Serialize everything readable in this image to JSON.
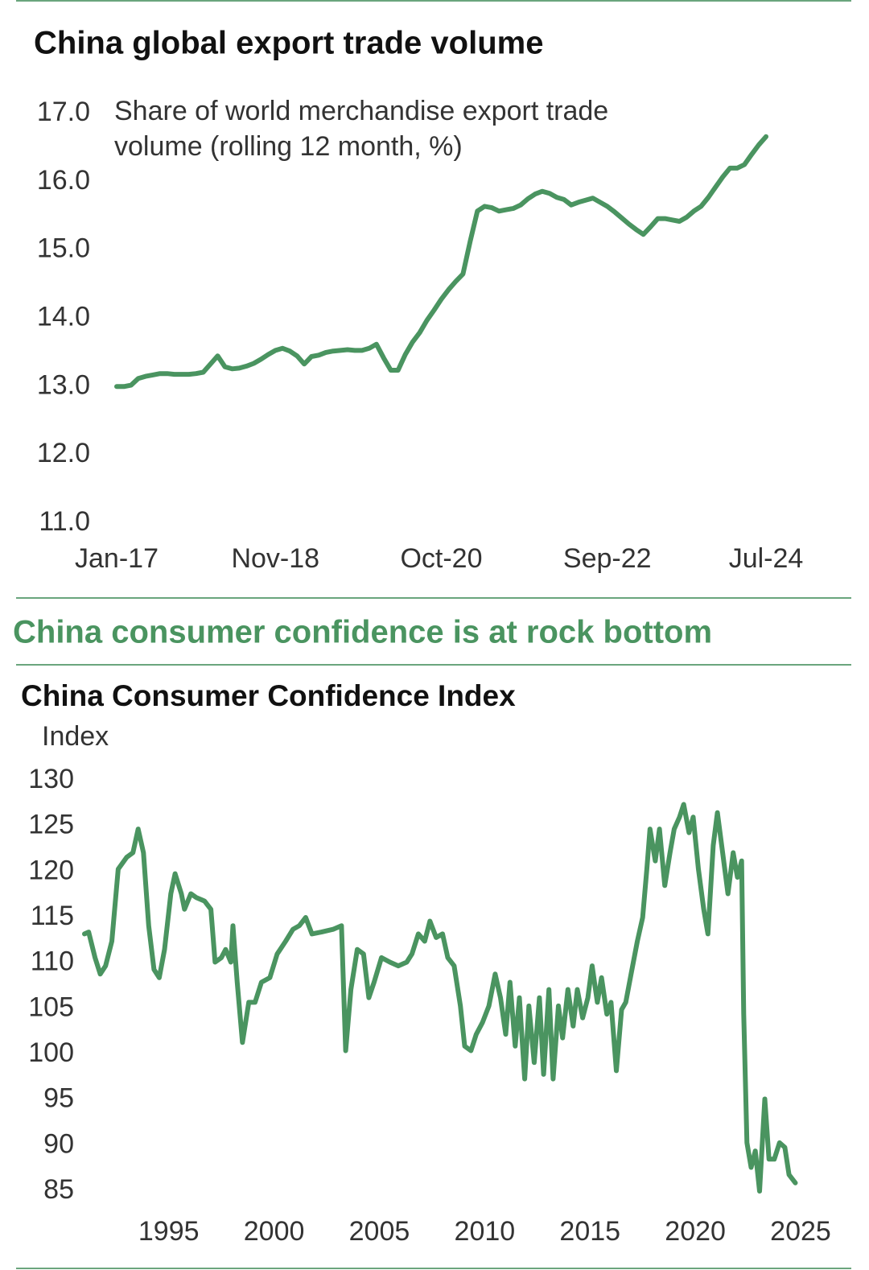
{
  "headline": "China consumer confidence is at rock bottom",
  "chart_data": [
    {
      "type": "line",
      "title": "China global export trade volume",
      "y_label_lines": [
        "Share of world merchandise export trade",
        "volume (rolling 12 month, %)"
      ],
      "categories": [
        "Jan-17",
        null,
        null,
        null,
        null,
        null,
        null,
        null,
        null,
        null,
        null,
        null,
        null,
        null,
        null,
        null,
        null,
        null,
        null,
        null,
        null,
        null,
        "Nov-18",
        null,
        null,
        null,
        null,
        null,
        null,
        null,
        null,
        null,
        null,
        null,
        null,
        null,
        null,
        null,
        null,
        null,
        null,
        null,
        null,
        null,
        null,
        "Oct-20",
        null,
        null,
        null,
        null,
        null,
        null,
        null,
        null,
        null,
        null,
        null,
        null,
        null,
        null,
        null,
        null,
        null,
        null,
        null,
        null,
        null,
        null,
        "Sep-22",
        null,
        null,
        null,
        null,
        null,
        null,
        null,
        null,
        null,
        null,
        null,
        null,
        null,
        null,
        null,
        null,
        null,
        null,
        null,
        null,
        null,
        "Jul-24"
      ],
      "values": [
        13.0,
        13.0,
        13.02,
        13.12,
        13.15,
        13.17,
        13.19,
        13.19,
        13.18,
        13.18,
        13.18,
        13.19,
        13.21,
        13.33,
        13.45,
        13.29,
        13.26,
        13.27,
        13.3,
        13.34,
        13.4,
        13.47,
        13.53,
        13.56,
        13.52,
        13.45,
        13.33,
        13.44,
        13.46,
        13.5,
        13.52,
        13.53,
        13.54,
        13.53,
        13.53,
        13.56,
        13.62,
        13.42,
        13.24,
        13.24,
        13.47,
        13.65,
        13.79,
        13.97,
        14.12,
        14.28,
        14.42,
        14.54,
        14.65,
        15.13,
        15.57,
        15.64,
        15.62,
        15.57,
        15.59,
        15.61,
        15.66,
        15.75,
        15.82,
        15.86,
        15.83,
        15.77,
        15.74,
        15.66,
        15.7,
        15.73,
        15.76,
        15.7,
        15.64,
        15.56,
        15.47,
        15.38,
        15.3,
        15.23,
        15.34,
        15.46,
        15.46,
        15.44,
        15.42,
        15.48,
        15.57,
        15.64,
        15.77,
        15.92,
        16.07,
        16.2,
        16.2,
        16.25,
        16.4,
        16.54,
        16.66
      ],
      "color": "#4a9460",
      "ylim": [
        11,
        17
      ],
      "yticks": [
        {
          "value": 11,
          "label": "11.0"
        },
        {
          "value": 12,
          "label": "12.0"
        },
        {
          "value": 13,
          "label": "13.0"
        },
        {
          "value": 14,
          "label": "14.0"
        },
        {
          "value": 15,
          "label": "15.0"
        },
        {
          "value": 16,
          "label": "16.0"
        },
        {
          "value": 17,
          "label": "17.0"
        }
      ],
      "grid": false
    },
    {
      "type": "line",
      "title": "China Consumer Confidence Index",
      "y_label": "Index",
      "x": [
        1991.0,
        1991.2,
        1991.5,
        1991.75,
        1992.0,
        1992.3,
        1992.6,
        1993.0,
        1993.3,
        1993.55,
        1993.8,
        1994.05,
        1994.3,
        1994.55,
        1994.8,
        1995.1,
        1995.3,
        1995.6,
        1995.75,
        1996.05,
        1996.3,
        1996.7,
        1997.0,
        1997.2,
        1997.5,
        1997.7,
        1997.95,
        1998.05,
        1998.25,
        1998.5,
        1998.8,
        1999.1,
        1999.4,
        1999.8,
        2000.15,
        2000.55,
        2000.9,
        2001.2,
        2001.5,
        2001.8,
        2002.25,
        2002.8,
        2003.2,
        2003.4,
        2003.65,
        2003.95,
        2004.25,
        2004.5,
        2004.75,
        2005.1,
        2005.5,
        2005.9,
        2006.3,
        2006.55,
        2006.85,
        2007.15,
        2007.4,
        2007.7,
        2008.0,
        2008.25,
        2008.55,
        2008.85,
        2009.05,
        2009.35,
        2009.6,
        2009.9,
        2010.2,
        2010.5,
        2010.75,
        2011.0,
        2011.2,
        2011.45,
        2011.65,
        2011.9,
        2012.1,
        2012.35,
        2012.6,
        2012.8,
        2013.05,
        2013.25,
        2013.5,
        2013.7,
        2013.95,
        2014.2,
        2014.4,
        2014.65,
        2014.9,
        2015.1,
        2015.35,
        2015.55,
        2015.8,
        2016.0,
        2016.25,
        2016.5,
        2016.7,
        2016.95,
        2017.25,
        2017.5,
        2017.7,
        2017.85,
        2018.1,
        2018.3,
        2018.55,
        2018.8,
        2019.0,
        2019.25,
        2019.45,
        2019.7,
        2019.9,
        2020.15,
        2020.4,
        2020.6,
        2020.85,
        2021.05,
        2021.3,
        2021.55,
        2021.8,
        2022.0,
        2022.2,
        2022.3,
        2022.45,
        2022.65,
        2022.85,
        2023.05,
        2023.3,
        2023.5,
        2023.75,
        2024.0,
        2024.25,
        2024.45,
        2024.75
      ],
      "values": [
        113.2,
        113.4,
        110.6,
        108.8,
        109.7,
        112.4,
        120.3,
        121.6,
        122.1,
        124.7,
        122.1,
        114.1,
        109.3,
        108.4,
        111.5,
        117.6,
        119.8,
        117.6,
        115.9,
        117.6,
        117.2,
        116.8,
        115.9,
        110.1,
        110.6,
        111.5,
        110.1,
        114.1,
        107.9,
        101.3,
        105.7,
        105.7,
        107.9,
        108.4,
        111.0,
        112.4,
        113.7,
        114.1,
        115.0,
        113.2,
        113.4,
        113.7,
        114.1,
        100.4,
        107.1,
        111.5,
        111.0,
        106.2,
        107.9,
        110.6,
        110.1,
        109.7,
        110.1,
        111.0,
        113.2,
        112.4,
        114.6,
        112.8,
        113.2,
        110.6,
        109.7,
        105.3,
        100.9,
        100.4,
        102.2,
        103.5,
        105.3,
        108.8,
        106.2,
        102.2,
        107.9,
        100.9,
        106.2,
        97.3,
        105.3,
        99.1,
        106.2,
        97.8,
        107.1,
        97.3,
        105.3,
        101.8,
        107.1,
        103.1,
        107.1,
        104.0,
        106.2,
        109.7,
        105.7,
        108.4,
        104.4,
        105.7,
        98.2,
        104.9,
        105.7,
        108.8,
        112.4,
        115.0,
        120.3,
        124.7,
        121.2,
        124.7,
        118.5,
        122.1,
        124.7,
        126.0,
        127.4,
        124.3,
        126.0,
        120.3,
        115.9,
        113.2,
        122.9,
        126.5,
        122.1,
        117.6,
        122.1,
        119.4,
        121.2,
        104.4,
        90.3,
        87.6,
        89.4,
        85.0,
        95.1,
        88.5,
        88.5,
        90.3,
        89.8,
        86.8,
        85.9
      ],
      "color": "#4a9460",
      "xlim": [
        1991,
        2025
      ],
      "xticks": [
        1995,
        2000,
        2005,
        2010,
        2015,
        2020,
        2025
      ],
      "ylim": [
        85,
        130
      ],
      "yticks": [
        85,
        90,
        95,
        100,
        105,
        110,
        115,
        120,
        125,
        130
      ],
      "grid": false
    }
  ]
}
